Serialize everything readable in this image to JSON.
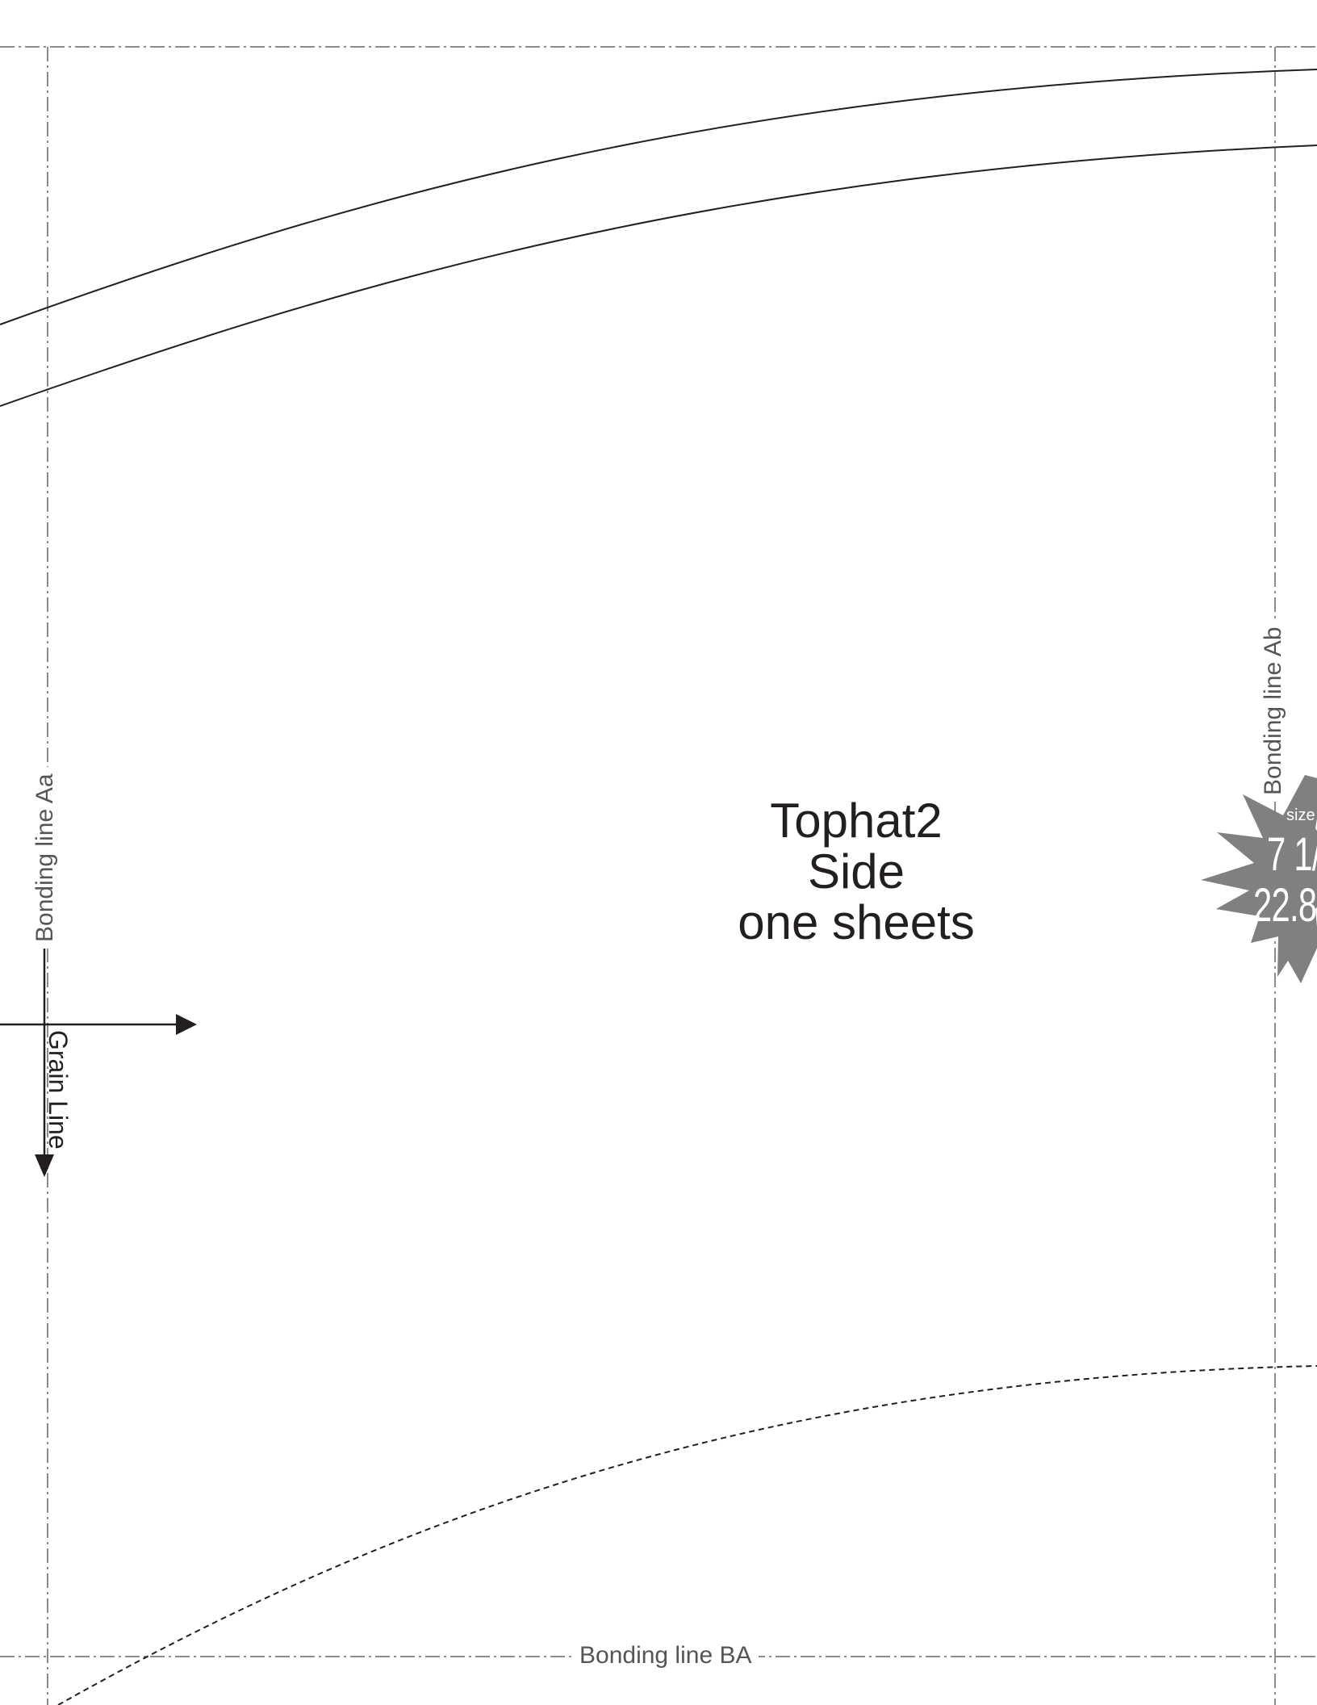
{
  "sheet": {
    "title_lines": [
      "Tophat2",
      "Side",
      "one sheets"
    ],
    "bonding_lines": {
      "left": "Bonding line Aa",
      "right": "Bonding line Ab",
      "bottom": "Bonding line BA"
    },
    "grain_line_label": "Grain Line",
    "size_badge": {
      "label": "size",
      "value_line_1": "7 1/",
      "value_line_2": "22.8"
    },
    "colors": {
      "ink": "#231f20",
      "guide": "#555555",
      "badge": "#808080"
    }
  }
}
